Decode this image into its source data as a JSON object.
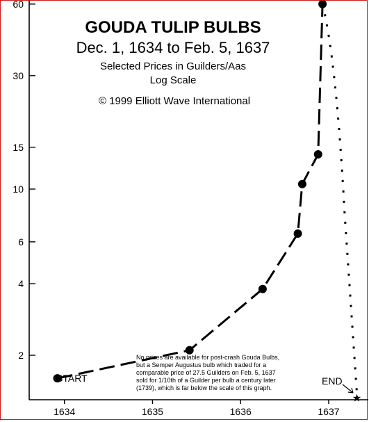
{
  "chart_data": {
    "type": "line",
    "title": "GOUDA TULIP BULBS",
    "subtitle": "Dec. 1, 1634 to Feb. 5, 1637",
    "subtitle2": "Selected Prices in Guilders/Aas",
    "scale_note": "Log Scale",
    "copyright": "© 1999 Elliott Wave International",
    "x_ticks": [
      1634,
      1635,
      1636,
      1637
    ],
    "x_tick_labels": [
      "1634",
      "1635",
      "1636",
      "1637"
    ],
    "y_scale": "log",
    "y_ticks": [
      2,
      4,
      6,
      10,
      15,
      30,
      60
    ],
    "y_tick_labels": [
      "2",
      "4",
      "6",
      "10",
      "15",
      "30",
      "60"
    ],
    "xlim": [
      1633.6,
      1637.45
    ],
    "ylim": [
      1.3,
      62
    ],
    "grid": false,
    "series": [
      {
        "values": [
          {
            "x": 1633.92,
            "y": 1.6
          },
          {
            "x": 1635.42,
            "y": 2.1
          },
          {
            "x": 1636.25,
            "y": 3.8
          },
          {
            "x": 1636.65,
            "y": 6.5
          },
          {
            "x": 1636.7,
            "y": 10.5
          },
          {
            "x": 1636.88,
            "y": 14.0
          },
          {
            "x": 1636.93,
            "y": 60.0
          }
        ]
      }
    ],
    "end_marker": {
      "x": 1637.32,
      "y": 1.32
    },
    "annotations": {
      "start": "START",
      "end": "END",
      "note": [
        "No prices are available for post-crash Gouda Bulbs,",
        "but a Semper Augustus bulb which traded for a",
        "comparable price of 27.5 Guilders on Feb. 5, 1637",
        "sold for 1/10th of a Guilder per bulb a century later",
        "(1739), which is far below the scale of this graph."
      ]
    }
  }
}
